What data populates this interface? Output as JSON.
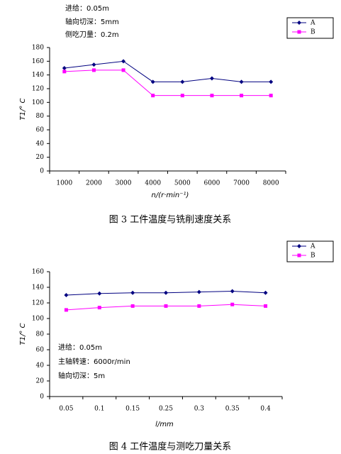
{
  "chart_data": [
    {
      "type": "line",
      "caption": "图 3 工件温度与铣削速度关系",
      "y_label": "T1/° C",
      "x_label": "n/(r·min⁻¹)",
      "annotations": [
        "进给：0.05m",
        "轴向切深：5mm",
        "侧吃刀量：0.2m"
      ],
      "categories": [
        "1000",
        "2000",
        "3000",
        "4000",
        "5000",
        "6000",
        "7000",
        "8000"
      ],
      "series": [
        {
          "name": "A",
          "color": "#000080",
          "marker": "diamond",
          "values": [
            150,
            155,
            160,
            130,
            130,
            135,
            130,
            130
          ]
        },
        {
          "name": "B",
          "color": "#ff00ff",
          "marker": "square",
          "values": [
            145,
            147,
            147,
            110,
            110,
            110,
            110,
            110
          ]
        }
      ],
      "ylim": [
        0,
        180
      ],
      "yticks": [
        0,
        20,
        40,
        60,
        80,
        100,
        120,
        140,
        160,
        180
      ]
    },
    {
      "type": "line",
      "caption": "图 4 工件温度与测吃刀量关系",
      "y_label": "T1/° C",
      "x_label": "l/mm",
      "annotations": [
        "进给：0.05m",
        "主轴转速：6000r/min",
        "轴向切深：5m"
      ],
      "categories": [
        "0.05",
        "0.1",
        "0.15",
        "0.25",
        "0.3",
        "0.35",
        "0.4"
      ],
      "series": [
        {
          "name": "A",
          "color": "#000080",
          "marker": "diamond",
          "values": [
            130,
            132,
            133,
            133,
            134,
            135,
            133
          ]
        },
        {
          "name": "B",
          "color": "#ff00ff",
          "marker": "square",
          "values": [
            111,
            114,
            116,
            116,
            116,
            118,
            116
          ]
        }
      ],
      "ylim": [
        0,
        160
      ],
      "yticks": [
        0,
        20,
        40,
        60,
        80,
        100,
        120,
        140,
        160
      ]
    }
  ]
}
